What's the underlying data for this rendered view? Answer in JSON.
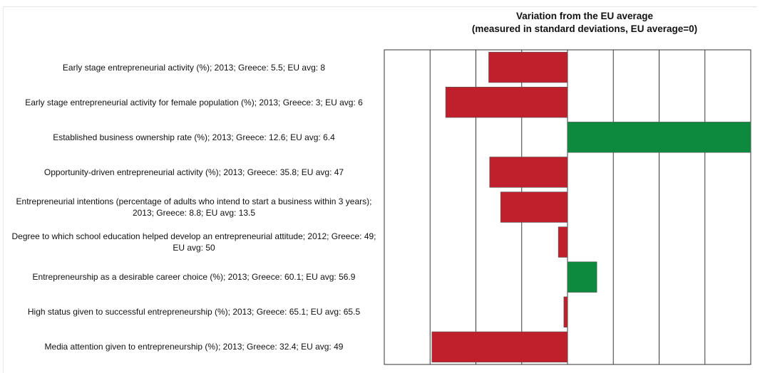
{
  "chart_data": {
    "type": "bar",
    "orientation": "horizontal",
    "title": "Variation from the EU average",
    "subtitle": "(measured in standard deviations, EU average=0)",
    "xlim": [
      -2,
      2
    ],
    "grid": true,
    "categories": [
      "Early stage entrepreneurial activity (%); 2013; Greece: 5.5; EU avg: 8",
      "Early stage entrepreneurial activity for female population (%); 2013; Greece: 3; EU avg: 6",
      "Established business ownership rate (%); 2013; Greece: 12.6; EU avg: 6.4",
      "Opportunity-driven entrepreneurial activity (%); 2013; Greece: 35.8; EU avg: 47",
      "Entrepreneurial intentions (percentage of adults who intend to start a business within 3 years); 2013; Greece: 8.8; EU avg: 13.5",
      "Degree to which school education helped develop an entrepreneurial attitude; 2012; Greece: 49; EU avg: 50",
      "Entrepreneurship as a desirable career choice (%); 2013; Greece: 60.1; EU avg: 56.9",
      "High status given to successful entrepreneurship (%); 2013; Greece: 65.1; EU avg: 65.5",
      "Media attention given to entrepreneurship (%); 2013; Greece: 32.4; EU avg: 49"
    ],
    "values": [
      -0.86,
      -1.33,
      2.0,
      -0.85,
      -0.73,
      -0.1,
      0.32,
      -0.04,
      -1.48
    ],
    "colors": {
      "negative": "#c0202b",
      "positive": "#0e8a3f"
    }
  }
}
